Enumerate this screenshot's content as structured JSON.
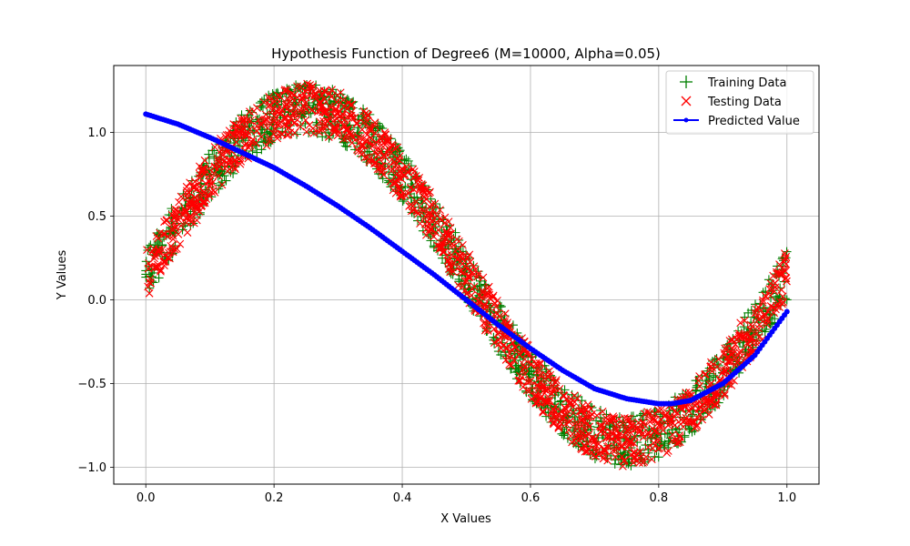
{
  "chart_data": {
    "type": "scatter",
    "title": "Hypothesis Function of Degree6 (M=10000, Alpha=0.05)",
    "xlabel": "X Values",
    "ylabel": "Y Values",
    "xlim": [
      -0.05,
      1.05
    ],
    "ylim": [
      -1.1,
      1.4
    ],
    "xticks": [
      0.0,
      0.2,
      0.4,
      0.6,
      0.8,
      1.0
    ],
    "xtick_labels": [
      "0.0",
      "0.2",
      "0.4",
      "0.6",
      "0.8",
      "1.0"
    ],
    "yticks": [
      -1.0,
      -0.5,
      0.0,
      0.5,
      1.0
    ],
    "ytick_labels": [
      "−1.0",
      "−0.5",
      "0.0",
      "0.5",
      "1.0"
    ],
    "grid": true,
    "legend_position": "top-right",
    "series": [
      {
        "name": "Training Data",
        "marker": "plus",
        "color": "#008000",
        "description": "sin(2πx) plus uniform noise in [0, 0.3], x sampled uniformly over [0, 1]",
        "x": [
          0.0,
          0.05,
          0.1,
          0.15,
          0.2,
          0.25,
          0.3,
          0.35,
          0.4,
          0.45,
          0.5,
          0.55,
          0.6,
          0.65,
          0.7,
          0.75,
          0.8,
          0.85,
          0.9,
          0.95,
          1.0
        ],
        "y_min": [
          0.0,
          0.31,
          0.59,
          0.81,
          0.95,
          1.0,
          0.95,
          0.81,
          0.59,
          0.31,
          0.0,
          -0.31,
          -0.59,
          -0.81,
          -0.95,
          -1.0,
          -0.95,
          -0.81,
          -0.59,
          -0.31,
          0.0
        ],
        "y_max": [
          0.3,
          0.61,
          0.89,
          1.11,
          1.25,
          1.3,
          1.25,
          1.11,
          0.89,
          0.61,
          0.3,
          -0.01,
          -0.29,
          -0.51,
          -0.65,
          -0.7,
          -0.65,
          -0.51,
          -0.29,
          -0.01,
          0.3
        ]
      },
      {
        "name": "Testing Data",
        "marker": "x",
        "color": "#ff0000",
        "description": "sin(2πx) plus uniform noise in [0, 0.3], x sampled uniformly over [0, 1]",
        "x": [
          0.0,
          0.05,
          0.1,
          0.15,
          0.2,
          0.25,
          0.3,
          0.35,
          0.4,
          0.45,
          0.5,
          0.55,
          0.6,
          0.65,
          0.7,
          0.75,
          0.8,
          0.85,
          0.9,
          0.95,
          1.0
        ],
        "y_min": [
          0.0,
          0.31,
          0.59,
          0.81,
          0.95,
          1.0,
          0.95,
          0.81,
          0.59,
          0.31,
          0.0,
          -0.31,
          -0.59,
          -0.81,
          -0.95,
          -1.0,
          -0.95,
          -0.81,
          -0.59,
          -0.31,
          0.0
        ],
        "y_max": [
          0.3,
          0.61,
          0.89,
          1.11,
          1.25,
          1.3,
          1.25,
          1.11,
          0.89,
          0.61,
          0.3,
          -0.01,
          -0.29,
          -0.51,
          -0.65,
          -0.7,
          -0.65,
          -0.51,
          -0.29,
          -0.01,
          0.3
        ]
      },
      {
        "name": "Predicted Value",
        "marker": "dot-line",
        "color": "#0000ff",
        "x": [
          0.0,
          0.05,
          0.1,
          0.15,
          0.2,
          0.25,
          0.3,
          0.35,
          0.4,
          0.45,
          0.5,
          0.55,
          0.6,
          0.65,
          0.7,
          0.75,
          0.8,
          0.82,
          0.85,
          0.9,
          0.95,
          1.0
        ],
        "y": [
          1.11,
          1.05,
          0.97,
          0.88,
          0.79,
          0.68,
          0.56,
          0.43,
          0.29,
          0.15,
          0.0,
          -0.15,
          -0.29,
          -0.42,
          -0.53,
          -0.59,
          -0.62,
          -0.62,
          -0.6,
          -0.5,
          -0.33,
          -0.07
        ]
      }
    ]
  }
}
